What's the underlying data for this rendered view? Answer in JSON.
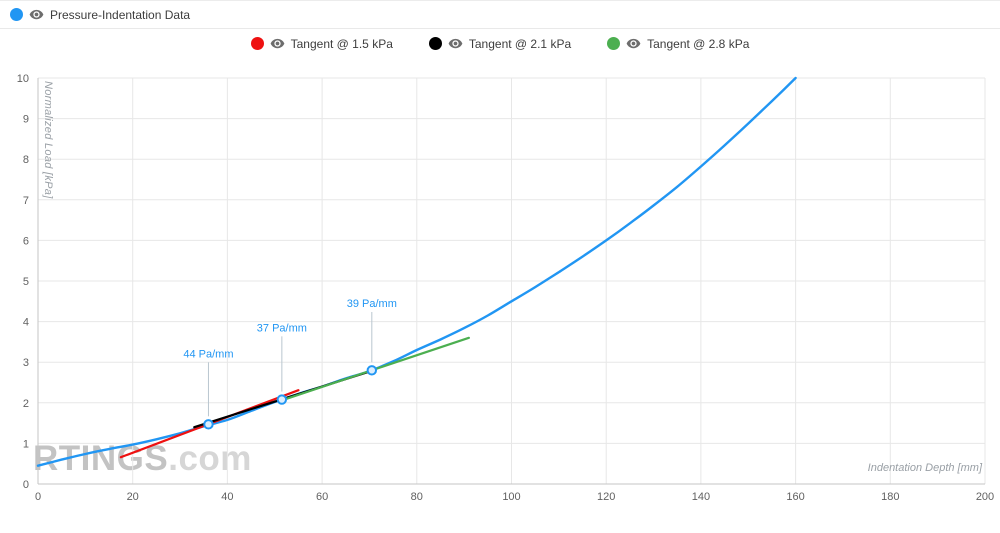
{
  "header": {
    "series_toggle": {
      "label": "Pressure-Indentation Data",
      "color": "#2196f3"
    }
  },
  "legend": {
    "items": [
      {
        "label": "Tangent @ 1.5 kPa",
        "color": "#ee1111"
      },
      {
        "label": "Tangent @ 2.1 kPa",
        "color": "#000000"
      },
      {
        "label": "Tangent @ 2.8 kPa",
        "color": "#4caf50"
      }
    ]
  },
  "watermark": {
    "bold": "RTINGS",
    "rest": ".com"
  },
  "chart_data": {
    "type": "line",
    "title": "Pressure-Indentation Data",
    "xlabel": "Indentation Depth [mm]",
    "ylabel": "Normalized Load [kPa]",
    "xlim": [
      0,
      200
    ],
    "ylim": [
      0,
      10
    ],
    "x_ticks": [
      0,
      20,
      40,
      60,
      80,
      100,
      120,
      140,
      160,
      180,
      200
    ],
    "y_ticks": [
      0,
      1,
      2,
      3,
      4,
      5,
      6,
      7,
      8,
      9,
      10
    ],
    "grid": true,
    "legend_position": "top",
    "series": [
      {
        "name": "Pressure-Indentation Data",
        "color": "#2196f3",
        "x": [
          0,
          5,
          10,
          15,
          20,
          25,
          30,
          35,
          40,
          45,
          50,
          55,
          60,
          65,
          70,
          75,
          80,
          85,
          90,
          95,
          100,
          105,
          110,
          115,
          120,
          125,
          130,
          135,
          140,
          145,
          150,
          155,
          160
        ],
        "y": [
          0.45,
          0.6,
          0.74,
          0.86,
          0.97,
          1.1,
          1.25,
          1.42,
          1.58,
          1.8,
          2.02,
          2.22,
          2.4,
          2.6,
          2.78,
          3.02,
          3.3,
          3.56,
          3.84,
          4.15,
          4.5,
          4.85,
          5.22,
          5.6,
          6.0,
          6.42,
          6.86,
          7.32,
          7.82,
          8.34,
          8.88,
          9.43,
          10.0
        ]
      }
    ],
    "tangents": [
      {
        "name": "Tangent @ 1.5 kPa",
        "color": "#ee1111",
        "slope_label": "44 Pa/mm",
        "point": {
          "x": 36,
          "y": 1.47
        },
        "x1": 17.5,
        "y1": 0.66,
        "x2": 55,
        "y2": 2.31,
        "label_y": 3.12
      },
      {
        "name": "Tangent @ 2.1 kPa",
        "color": "#000000",
        "slope_label": "37 Pa/mm",
        "point": {
          "x": 51.5,
          "y": 2.08
        },
        "x1": 33,
        "y1": 1.4,
        "x2": 70,
        "y2": 2.77,
        "label_y": 3.76
      },
      {
        "name": "Tangent @ 2.8 kPa",
        "color": "#4caf50",
        "slope_label": "39 Pa/mm",
        "point": {
          "x": 70.5,
          "y": 2.8
        },
        "x1": 52,
        "y1": 2.08,
        "x2": 91,
        "y2": 3.6,
        "label_y": 4.36
      }
    ],
    "style": {
      "grid_color": "#e7e7e7",
      "axis_color": "#c6c6c6",
      "tick_color": "#616161",
      "annotation_color": "#2196f3",
      "leader_color": "#b9c6cf",
      "marker_fill": "#dbeefd"
    }
  }
}
